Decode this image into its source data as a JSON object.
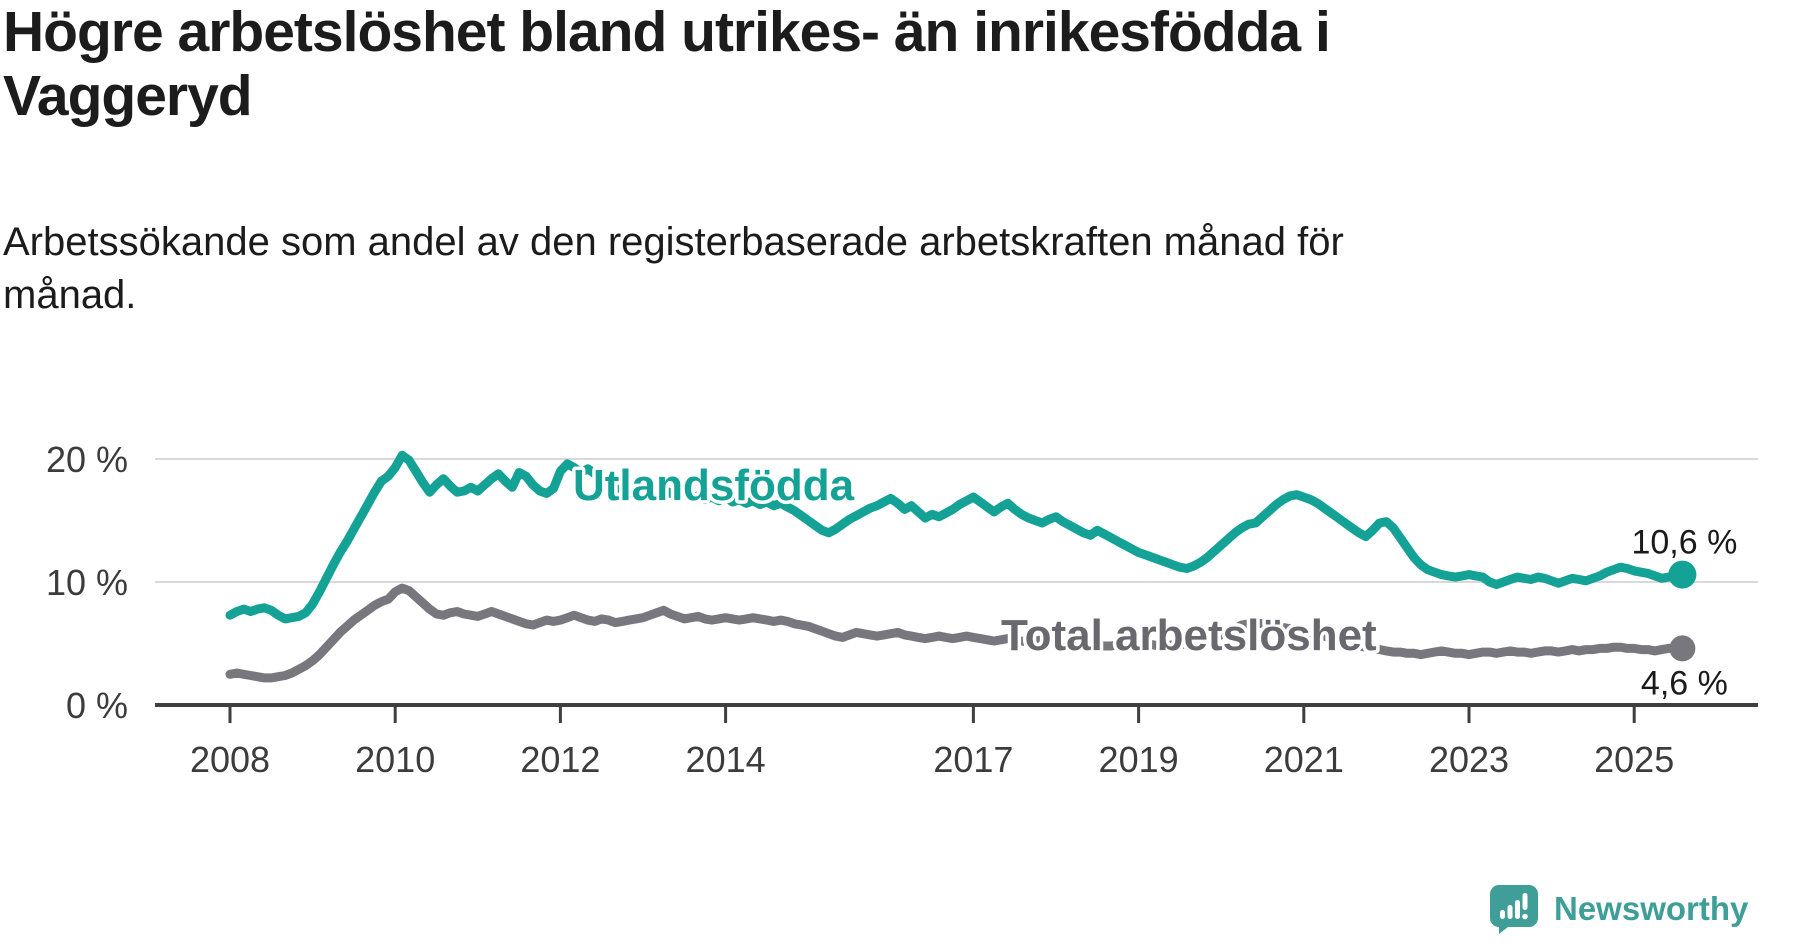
{
  "header": {
    "title_line1": "Högre arbetslöshet bland utrikes- än inrikesfödda i",
    "title_line2": "Vaggeryd",
    "subtitle_line1": "Arbetssökande som andel av den registerbaserade arbetskraften månad för",
    "subtitle_line2": "månad."
  },
  "footer": {
    "brand_name": "Newsworthy",
    "brand_color": "#3f9e98"
  },
  "chart_data": {
    "type": "line",
    "title": "Högre arbetslöshet bland utrikes- än inrikesfödda i Vaggeryd",
    "subtitle": "Arbetssökande som andel av den registerbaserade arbetskraften månad för månad.",
    "x_unit": "monthly, decimal years",
    "x_start_year": 2008,
    "x_step_months": 1,
    "x_ticks": [
      2008,
      2010,
      2012,
      2014,
      2017,
      2019,
      2021,
      2023,
      2025
    ],
    "y_ticks": [
      0,
      10,
      20
    ],
    "y_tick_labels": [
      "0 %",
      "10 %",
      "20 %"
    ],
    "ylim": [
      0,
      21.5
    ],
    "grid": "horizontal",
    "legend_position": "inline-labels",
    "series": [
      {
        "name": "Utlandsfödda",
        "color": "#13a295",
        "label_color": "#13a295",
        "end_label": "10,6 %",
        "end_value": 10.6,
        "end_label_side": "above",
        "values": [
          7.3,
          7.6,
          7.8,
          7.6,
          7.8,
          7.9,
          7.7,
          7.3,
          7.0,
          7.1,
          7.2,
          7.5,
          8.2,
          9.2,
          10.3,
          11.4,
          12.4,
          13.3,
          14.3,
          15.3,
          16.3,
          17.3,
          18.2,
          18.6,
          19.3,
          20.3,
          19.9,
          19.0,
          18.1,
          17.3,
          17.9,
          18.4,
          17.8,
          17.3,
          17.4,
          17.7,
          17.4,
          17.9,
          18.4,
          18.8,
          18.2,
          17.7,
          18.9,
          18.6,
          17.9,
          17.4,
          17.2,
          17.6,
          19.0,
          19.6,
          19.3,
          18.9,
          19.2,
          18.8,
          18.4,
          18.0,
          17.6,
          17.3,
          17.5,
          17.8,
          18.0,
          17.7,
          17.9,
          17.5,
          17.2,
          17.5,
          17.1,
          16.8,
          17.0,
          16.7,
          16.9,
          16.6,
          16.9,
          16.5,
          16.7,
          16.4,
          16.6,
          16.3,
          16.5,
          16.2,
          16.4,
          16.1,
          15.8,
          15.4,
          15.0,
          14.6,
          14.2,
          14.0,
          14.3,
          14.7,
          15.1,
          15.4,
          15.7,
          16.0,
          16.2,
          16.5,
          16.8,
          16.4,
          15.9,
          16.2,
          15.7,
          15.2,
          15.5,
          15.3,
          15.6,
          15.9,
          16.3,
          16.6,
          16.9,
          16.5,
          16.1,
          15.7,
          16.1,
          16.4,
          15.9,
          15.5,
          15.2,
          15.0,
          14.8,
          15.1,
          15.3,
          14.9,
          14.6,
          14.3,
          14.0,
          13.8,
          14.2,
          13.9,
          13.6,
          13.3,
          13.0,
          12.7,
          12.4,
          12.2,
          12.0,
          11.8,
          11.6,
          11.4,
          11.2,
          11.1,
          11.3,
          11.6,
          12.0,
          12.5,
          13.0,
          13.5,
          14.0,
          14.4,
          14.7,
          14.8,
          15.3,
          15.8,
          16.3,
          16.7,
          17.0,
          17.1,
          16.9,
          16.7,
          16.4,
          16.0,
          15.6,
          15.2,
          14.8,
          14.4,
          14.0,
          13.7,
          14.2,
          14.8,
          14.9,
          14.4,
          13.6,
          12.8,
          12.0,
          11.4,
          11.0,
          10.8,
          10.6,
          10.5,
          10.4,
          10.5,
          10.6,
          10.5,
          10.4,
          10.0,
          9.8,
          10.0,
          10.2,
          10.4,
          10.3,
          10.2,
          10.4,
          10.3,
          10.1,
          9.9,
          10.1,
          10.3,
          10.2,
          10.1,
          10.3,
          10.5,
          10.8,
          11.0,
          11.2,
          11.1,
          10.9,
          10.8,
          10.7,
          10.5,
          10.3,
          10.4,
          10.5,
          10.6
        ]
      },
      {
        "name": "Total arbetslöshet",
        "color": "#77777d",
        "label_color": "#68686e",
        "end_label": "4,6 %",
        "end_value": 4.6,
        "end_label_side": "below",
        "values": [
          2.5,
          2.6,
          2.5,
          2.4,
          2.3,
          2.2,
          2.2,
          2.3,
          2.4,
          2.6,
          2.9,
          3.2,
          3.6,
          4.1,
          4.7,
          5.3,
          5.9,
          6.4,
          6.9,
          7.3,
          7.7,
          8.1,
          8.4,
          8.6,
          9.2,
          9.5,
          9.3,
          8.8,
          8.3,
          7.8,
          7.4,
          7.3,
          7.5,
          7.6,
          7.4,
          7.3,
          7.2,
          7.4,
          7.6,
          7.4,
          7.2,
          7.0,
          6.8,
          6.6,
          6.5,
          6.7,
          6.9,
          6.8,
          6.9,
          7.1,
          7.3,
          7.1,
          6.9,
          6.8,
          7.0,
          6.9,
          6.7,
          6.8,
          6.9,
          7.0,
          7.1,
          7.3,
          7.5,
          7.7,
          7.4,
          7.2,
          7.0,
          7.1,
          7.2,
          7.0,
          6.9,
          7.0,
          7.1,
          7.0,
          6.9,
          7.0,
          7.1,
          7.0,
          6.9,
          6.8,
          6.9,
          6.8,
          6.6,
          6.5,
          6.4,
          6.2,
          6.0,
          5.8,
          5.6,
          5.5,
          5.7,
          5.9,
          5.8,
          5.7,
          5.6,
          5.7,
          5.8,
          5.9,
          5.7,
          5.6,
          5.5,
          5.4,
          5.5,
          5.6,
          5.5,
          5.4,
          5.5,
          5.6,
          5.5,
          5.4,
          5.3,
          5.2,
          5.3,
          5.4,
          5.3,
          5.2,
          5.1,
          5.2,
          5.3,
          5.2,
          5.1,
          5.0,
          4.9,
          4.9,
          4.8,
          4.8,
          4.9,
          4.8,
          4.8,
          4.9,
          5.0,
          5.0,
          5.0,
          4.9,
          4.9,
          4.8,
          4.8,
          4.9,
          4.9,
          5.0,
          5.1,
          5.2,
          5.3,
          5.5,
          5.7,
          5.9,
          6.2,
          6.5,
          6.6,
          6.7,
          6.6,
          6.5,
          6.4,
          6.3,
          6.2,
          6.1,
          6.0,
          5.9,
          5.8,
          5.6,
          5.4,
          5.2,
          5.0,
          4.9,
          4.8,
          4.7,
          4.6,
          4.5,
          4.4,
          4.3,
          4.3,
          4.2,
          4.2,
          4.1,
          4.2,
          4.3,
          4.4,
          4.3,
          4.2,
          4.2,
          4.1,
          4.2,
          4.3,
          4.3,
          4.2,
          4.3,
          4.4,
          4.3,
          4.3,
          4.2,
          4.3,
          4.4,
          4.4,
          4.3,
          4.4,
          4.5,
          4.4,
          4.5,
          4.5,
          4.6,
          4.6,
          4.7,
          4.7,
          4.6,
          4.6,
          4.5,
          4.5,
          4.4,
          4.5,
          4.6,
          4.6,
          4.6
        ]
      }
    ]
  }
}
